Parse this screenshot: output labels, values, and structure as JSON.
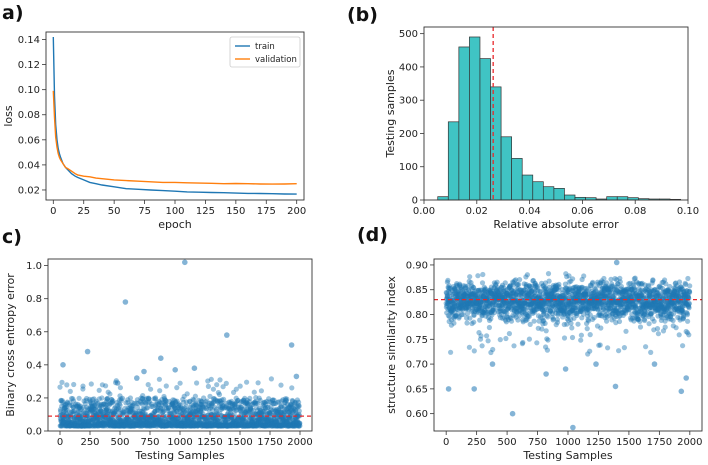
{
  "panel_labels": [
    "a)",
    "(b)",
    "c)",
    "(d)"
  ],
  "colors": {
    "train": "#1f77b4",
    "validation": "#ff7f0e",
    "hist_fill": "#40c4c4",
    "hist_edge": "#333333",
    "scatter": "#1f77b4",
    "mean_line": "#e8282b"
  },
  "chart_data": [
    {
      "type": "line",
      "id": "a",
      "xlabel": "epoch",
      "ylabel": "loss",
      "xlim": [
        -6,
        206
      ],
      "ylim": [
        0.012,
        0.146
      ],
      "xticks": [
        0,
        25,
        50,
        75,
        100,
        125,
        150,
        175,
        200
      ],
      "yticks": [
        0.02,
        0.04,
        0.06,
        0.08,
        0.1,
        0.12,
        0.14
      ],
      "ytick_labels": [
        "0.02",
        "0.04",
        "0.06",
        "0.08",
        "0.10",
        "0.12",
        "0.14"
      ],
      "legend_position": "top-right",
      "series": [
        {
          "name": "train",
          "x": [
            0,
            1,
            2,
            3,
            4,
            5,
            6,
            8,
            10,
            12,
            15,
            18,
            20,
            25,
            30,
            35,
            40,
            50,
            60,
            70,
            80,
            90,
            100,
            110,
            120,
            130,
            140,
            150,
            160,
            170,
            180,
            190,
            200
          ],
          "y": [
            0.142,
            0.095,
            0.072,
            0.06,
            0.053,
            0.049,
            0.046,
            0.041,
            0.038,
            0.036,
            0.033,
            0.031,
            0.03,
            0.028,
            0.026,
            0.025,
            0.024,
            0.0225,
            0.021,
            0.0205,
            0.02,
            0.0195,
            0.019,
            0.0185,
            0.0182,
            0.018,
            0.0178,
            0.0175,
            0.0173,
            0.0172,
            0.017,
            0.0168,
            0.0167
          ]
        },
        {
          "name": "validation",
          "x": [
            0,
            1,
            2,
            3,
            4,
            5,
            6,
            8,
            10,
            12,
            15,
            18,
            20,
            25,
            30,
            35,
            40,
            50,
            60,
            70,
            80,
            90,
            100,
            110,
            120,
            130,
            140,
            150,
            160,
            170,
            180,
            190,
            200
          ],
          "y": [
            0.099,
            0.078,
            0.062,
            0.054,
            0.049,
            0.046,
            0.044,
            0.041,
            0.038,
            0.037,
            0.035,
            0.033,
            0.032,
            0.031,
            0.0305,
            0.0295,
            0.029,
            0.028,
            0.0275,
            0.027,
            0.0265,
            0.026,
            0.026,
            0.0257,
            0.0255,
            0.0253,
            0.025,
            0.0252,
            0.025,
            0.0248,
            0.0247,
            0.0248,
            0.025
          ]
        }
      ]
    },
    {
      "type": "bar",
      "id": "b",
      "xlabel": "Relative absolute error",
      "ylabel": "Testing samples",
      "xlim": [
        0,
        0.1
      ],
      "ylim": [
        0,
        520
      ],
      "xticks": [
        0,
        0.02,
        0.04,
        0.06,
        0.08,
        0.1
      ],
      "xtick_labels": [
        "0.00",
        "0.02",
        "0.04",
        "0.06",
        "0.08",
        "0.10"
      ],
      "yticks": [
        0,
        100,
        200,
        300,
        400,
        500
      ],
      "bin_edges": [
        0.0052,
        0.0092,
        0.0132,
        0.0172,
        0.0212,
        0.0252,
        0.0292,
        0.0332,
        0.0372,
        0.0412,
        0.0452,
        0.0492,
        0.0532,
        0.0572,
        0.0612,
        0.0652,
        0.0692,
        0.0732,
        0.0772,
        0.0812,
        0.0852,
        0.0892,
        0.0932,
        0.0972
      ],
      "values": [
        10,
        235,
        460,
        490,
        425,
        340,
        190,
        125,
        75,
        55,
        40,
        35,
        15,
        8,
        7,
        3,
        10,
        10,
        7,
        4,
        3,
        3,
        2
      ],
      "mean_line": 0.0262
    },
    {
      "type": "scatter",
      "id": "c",
      "xlabel": "Testing Samples",
      "ylabel": "Binary cross entropy error",
      "xlim": [
        -100,
        2100
      ],
      "ylim": [
        0,
        1.04
      ],
      "xticks": [
        0,
        250,
        500,
        750,
        1000,
        1250,
        1500,
        1750,
        2000
      ],
      "yticks": [
        0.0,
        0.2,
        0.4,
        0.6,
        0.8,
        1.0
      ],
      "ytick_labels": [
        "0.0",
        "0.2",
        "0.4",
        "0.6",
        "0.8",
        "1.0"
      ],
      "n_points": 2000,
      "bulk_range": [
        0.03,
        0.2
      ],
      "mean_line": 0.09,
      "outliers": [
        [
          25,
          0.4
        ],
        [
          230,
          0.48
        ],
        [
          545,
          0.78
        ],
        [
          1040,
          1.02
        ],
        [
          1390,
          0.58
        ],
        [
          840,
          0.44
        ],
        [
          1930,
          0.52
        ],
        [
          1970,
          0.33
        ],
        [
          700,
          0.36
        ],
        [
          960,
          0.37
        ],
        [
          1120,
          0.38
        ],
        [
          640,
          0.32
        ],
        [
          480,
          0.29
        ]
      ]
    },
    {
      "type": "scatter",
      "id": "d",
      "xlabel": "Testing Samples",
      "ylabel": "structure similarity index",
      "xlim": [
        -100,
        2100
      ],
      "ylim": [
        0.565,
        0.912
      ],
      "xticks": [
        0,
        250,
        500,
        750,
        1000,
        1250,
        1500,
        1750,
        2000
      ],
      "yticks": [
        0.6,
        0.65,
        0.7,
        0.75,
        0.8,
        0.85,
        0.9
      ],
      "ytick_labels": [
        "0.60",
        "0.65",
        "0.70",
        "0.75",
        "0.80",
        "0.85",
        "0.90"
      ],
      "n_points": 2000,
      "bulk_range": [
        0.77,
        0.885
      ],
      "mean_line": 0.83,
      "outliers": [
        [
          20,
          0.65
        ],
        [
          230,
          0.65
        ],
        [
          545,
          0.6
        ],
        [
          1040,
          0.572
        ],
        [
          1390,
          0.655
        ],
        [
          1930,
          0.645
        ],
        [
          1970,
          0.672
        ],
        [
          380,
          0.7
        ],
        [
          820,
          0.68
        ],
        [
          980,
          0.69
        ],
        [
          1230,
          0.7
        ],
        [
          1710,
          0.7
        ],
        [
          1400,
          0.905
        ]
      ]
    }
  ]
}
